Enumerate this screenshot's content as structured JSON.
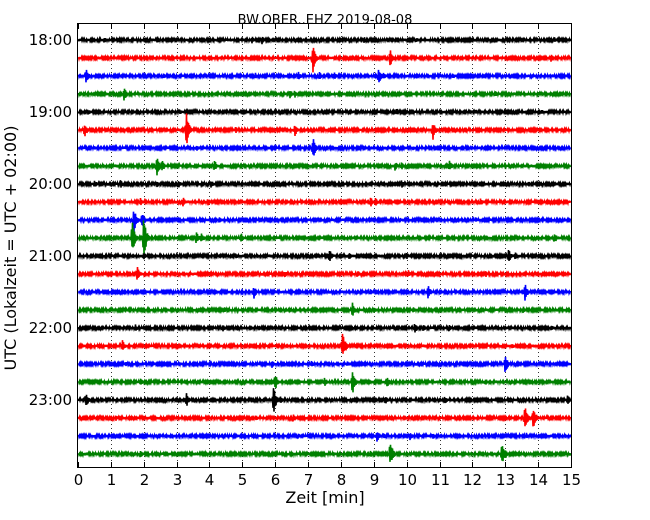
{
  "chart_data": {
    "type": "line",
    "title": "BW.OBER..EHZ 2019-08-08",
    "xlabel": "Zeit  [min]",
    "ylabel": "UTC (Lokalzeit = UTC + 02:00)",
    "xlim": [
      0,
      15
    ],
    "x_ticks": [
      0,
      1,
      2,
      3,
      4,
      5,
      6,
      7,
      8,
      9,
      10,
      11,
      12,
      13,
      14,
      15
    ],
    "y_tick_labels": [
      "18:00",
      "19:00",
      "20:00",
      "21:00",
      "22:00",
      "23:00"
    ],
    "grid": "vertical dotted",
    "colors": [
      "#000000",
      "#ff0000",
      "#0000ff",
      "#008000"
    ],
    "series": [
      {
        "start": "18:00",
        "color": "#000000",
        "events": [
          [
            0.8,
            0.35
          ],
          [
            2.4,
            0.5
          ],
          [
            5.3,
            0.45
          ],
          [
            5.6,
            0.5
          ],
          [
            8.7,
            0.4
          ],
          [
            10.3,
            0.35
          ],
          [
            14.5,
            0.35
          ]
        ]
      },
      {
        "start": "18:15",
        "color": "#ff0000",
        "events": [
          [
            7.15,
            1.6
          ],
          [
            9.5,
            1.0
          ],
          [
            14.4,
            0.6
          ]
        ]
      },
      {
        "start": "18:30",
        "color": "#0000ff",
        "events": [
          [
            0.25,
            0.9
          ],
          [
            2.6,
            0.4
          ],
          [
            5.4,
            0.4
          ],
          [
            6.7,
            0.6
          ],
          [
            7.35,
            0.5
          ],
          [
            7.8,
            0.5
          ],
          [
            9.15,
            0.9
          ],
          [
            9.3,
            0.5
          ],
          [
            11.4,
            0.4
          ]
        ]
      },
      {
        "start": "18:45",
        "color": "#008000",
        "events": [
          [
            1.4,
            0.9
          ],
          [
            6.45,
            0.6
          ],
          [
            6.6,
            0.5
          ],
          [
            12.7,
            0.35
          ]
        ]
      },
      {
        "start": "19:00",
        "color": "#000000",
        "events": [
          [
            0.3,
            0.4
          ],
          [
            3.1,
            0.4
          ],
          [
            9.7,
            0.45
          ],
          [
            12.1,
            0.35
          ],
          [
            14.1,
            0.35
          ]
        ]
      },
      {
        "start": "19:15",
        "color": "#ff0000",
        "events": [
          [
            0.2,
            0.9
          ],
          [
            3.3,
            2.0
          ],
          [
            4.8,
            0.4
          ],
          [
            6.6,
            0.7
          ],
          [
            10.8,
            1.2
          ]
        ]
      },
      {
        "start": "19:30",
        "color": "#0000ff",
        "events": [
          [
            0.5,
            0.3
          ],
          [
            3.6,
            0.4
          ],
          [
            7.15,
            1.3
          ],
          [
            9.3,
            0.3
          ],
          [
            10.2,
            0.3
          ]
        ]
      },
      {
        "start": "19:45",
        "color": "#008000",
        "events": [
          [
            2.4,
            1.4
          ],
          [
            2.55,
            0.8
          ],
          [
            4.15,
            0.7
          ],
          [
            9.65,
            0.6
          ],
          [
            9.85,
            0.5
          ],
          [
            11.3,
            0.7
          ]
        ]
      },
      {
        "start": "20:00",
        "color": "#000000",
        "events": [
          [
            0.5,
            0.5
          ],
          [
            1.3,
            0.5
          ],
          [
            2.4,
            0.45
          ],
          [
            3.05,
            0.5
          ],
          [
            4.05,
            0.5
          ],
          [
            9.85,
            0.5
          ],
          [
            13.7,
            0.4
          ]
        ]
      },
      {
        "start": "20:15",
        "color": "#ff0000",
        "events": [
          [
            1.9,
            0.5
          ],
          [
            3.2,
            0.6
          ],
          [
            3.95,
            0.5
          ],
          [
            8.9,
            0.6
          ],
          [
            9.05,
            0.5
          ],
          [
            12.25,
            0.5
          ]
        ]
      },
      {
        "start": "20:30",
        "color": "#0000ff",
        "events": [
          [
            1.7,
            1.6
          ],
          [
            1.95,
            1.0
          ],
          [
            4.3,
            0.4
          ],
          [
            9.8,
            0.3
          ],
          [
            12.1,
            0.35
          ],
          [
            14.8,
            0.3
          ]
        ]
      },
      {
        "start": "20:45",
        "color": "#008000",
        "events": [
          [
            1.65,
            2.0
          ],
          [
            2.0,
            2.5
          ],
          [
            3.6,
            0.8
          ],
          [
            3.75,
            0.7
          ],
          [
            4.95,
            0.7
          ],
          [
            14.5,
            0.7
          ]
        ]
      },
      {
        "start": "21:00",
        "color": "#000000",
        "events": [
          [
            2.0,
            0.5
          ],
          [
            4.8,
            0.4
          ],
          [
            7.65,
            0.8
          ],
          [
            8.25,
            0.5
          ],
          [
            10.0,
            0.4
          ],
          [
            13.1,
            0.8
          ],
          [
            13.3,
            0.5
          ]
        ]
      },
      {
        "start": "21:15",
        "color": "#ff0000",
        "events": [
          [
            1.8,
            1.0
          ],
          [
            6.3,
            0.4
          ],
          [
            8.5,
            0.5
          ],
          [
            10.05,
            0.5
          ],
          [
            12.4,
            0.4
          ]
        ]
      },
      {
        "start": "21:30",
        "color": "#0000ff",
        "events": [
          [
            5.35,
            0.8
          ],
          [
            8.9,
            0.4
          ],
          [
            10.65,
            0.8
          ],
          [
            13.6,
            1.0
          ]
        ]
      },
      {
        "start": "21:45",
        "color": "#008000",
        "events": [
          [
            4.45,
            0.4
          ],
          [
            8.35,
            0.9
          ],
          [
            9.0,
            0.4
          ],
          [
            10.2,
            0.4
          ],
          [
            13.55,
            0.5
          ]
        ]
      },
      {
        "start": "22:00",
        "color": "#000000",
        "events": [
          [
            1.75,
            0.4
          ],
          [
            4.4,
            0.5
          ],
          [
            5.5,
            0.4
          ],
          [
            10.25,
            0.7
          ],
          [
            10.5,
            0.5
          ],
          [
            11.3,
            0.5
          ],
          [
            14.4,
            0.4
          ]
        ]
      },
      {
        "start": "22:15",
        "color": "#ff0000",
        "events": [
          [
            1.35,
            0.7
          ],
          [
            8.05,
            1.6
          ],
          [
            8.15,
            0.6
          ],
          [
            13.2,
            0.4
          ]
        ]
      },
      {
        "start": "22:30",
        "color": "#0000ff",
        "events": [
          [
            1.45,
            0.3
          ],
          [
            5.9,
            0.5
          ],
          [
            7.1,
            0.4
          ],
          [
            8.2,
            0.3
          ],
          [
            13.0,
            1.2
          ]
        ]
      },
      {
        "start": "22:45",
        "color": "#008000",
        "events": [
          [
            1.9,
            0.6
          ],
          [
            6.0,
            1.0
          ],
          [
            7.5,
            0.6
          ],
          [
            8.35,
            1.6
          ],
          [
            9.4,
            0.7
          ],
          [
            12.4,
            0.4
          ]
        ]
      },
      {
        "start": "23:00",
        "color": "#000000",
        "events": [
          [
            0.25,
            0.8
          ],
          [
            3.3,
            0.8
          ],
          [
            5.95,
            1.6
          ],
          [
            6.15,
            0.5
          ],
          [
            9.35,
            0.5
          ],
          [
            11.15,
            0.6
          ],
          [
            14.9,
            0.7
          ]
        ]
      },
      {
        "start": "23:15",
        "color": "#ff0000",
        "events": [
          [
            1.15,
            0.35
          ],
          [
            5.4,
            0.4
          ],
          [
            6.55,
            0.5
          ],
          [
            13.6,
            1.4
          ],
          [
            13.85,
            1.4
          ]
        ]
      },
      {
        "start": "23:30",
        "color": "#0000ff",
        "events": [
          [
            6.7,
            0.35
          ],
          [
            9.1,
            0.8
          ],
          [
            9.3,
            0.4
          ],
          [
            10.1,
            0.5
          ],
          [
            10.8,
            0.4
          ],
          [
            13.65,
            0.4
          ]
        ]
      },
      {
        "start": "23:45",
        "color": "#008000",
        "events": [
          [
            1.9,
            0.5
          ],
          [
            8.9,
            0.4
          ],
          [
            9.5,
            1.6
          ],
          [
            12.9,
            1.2
          ],
          [
            13.0,
            0.6
          ]
        ]
      }
    ]
  }
}
